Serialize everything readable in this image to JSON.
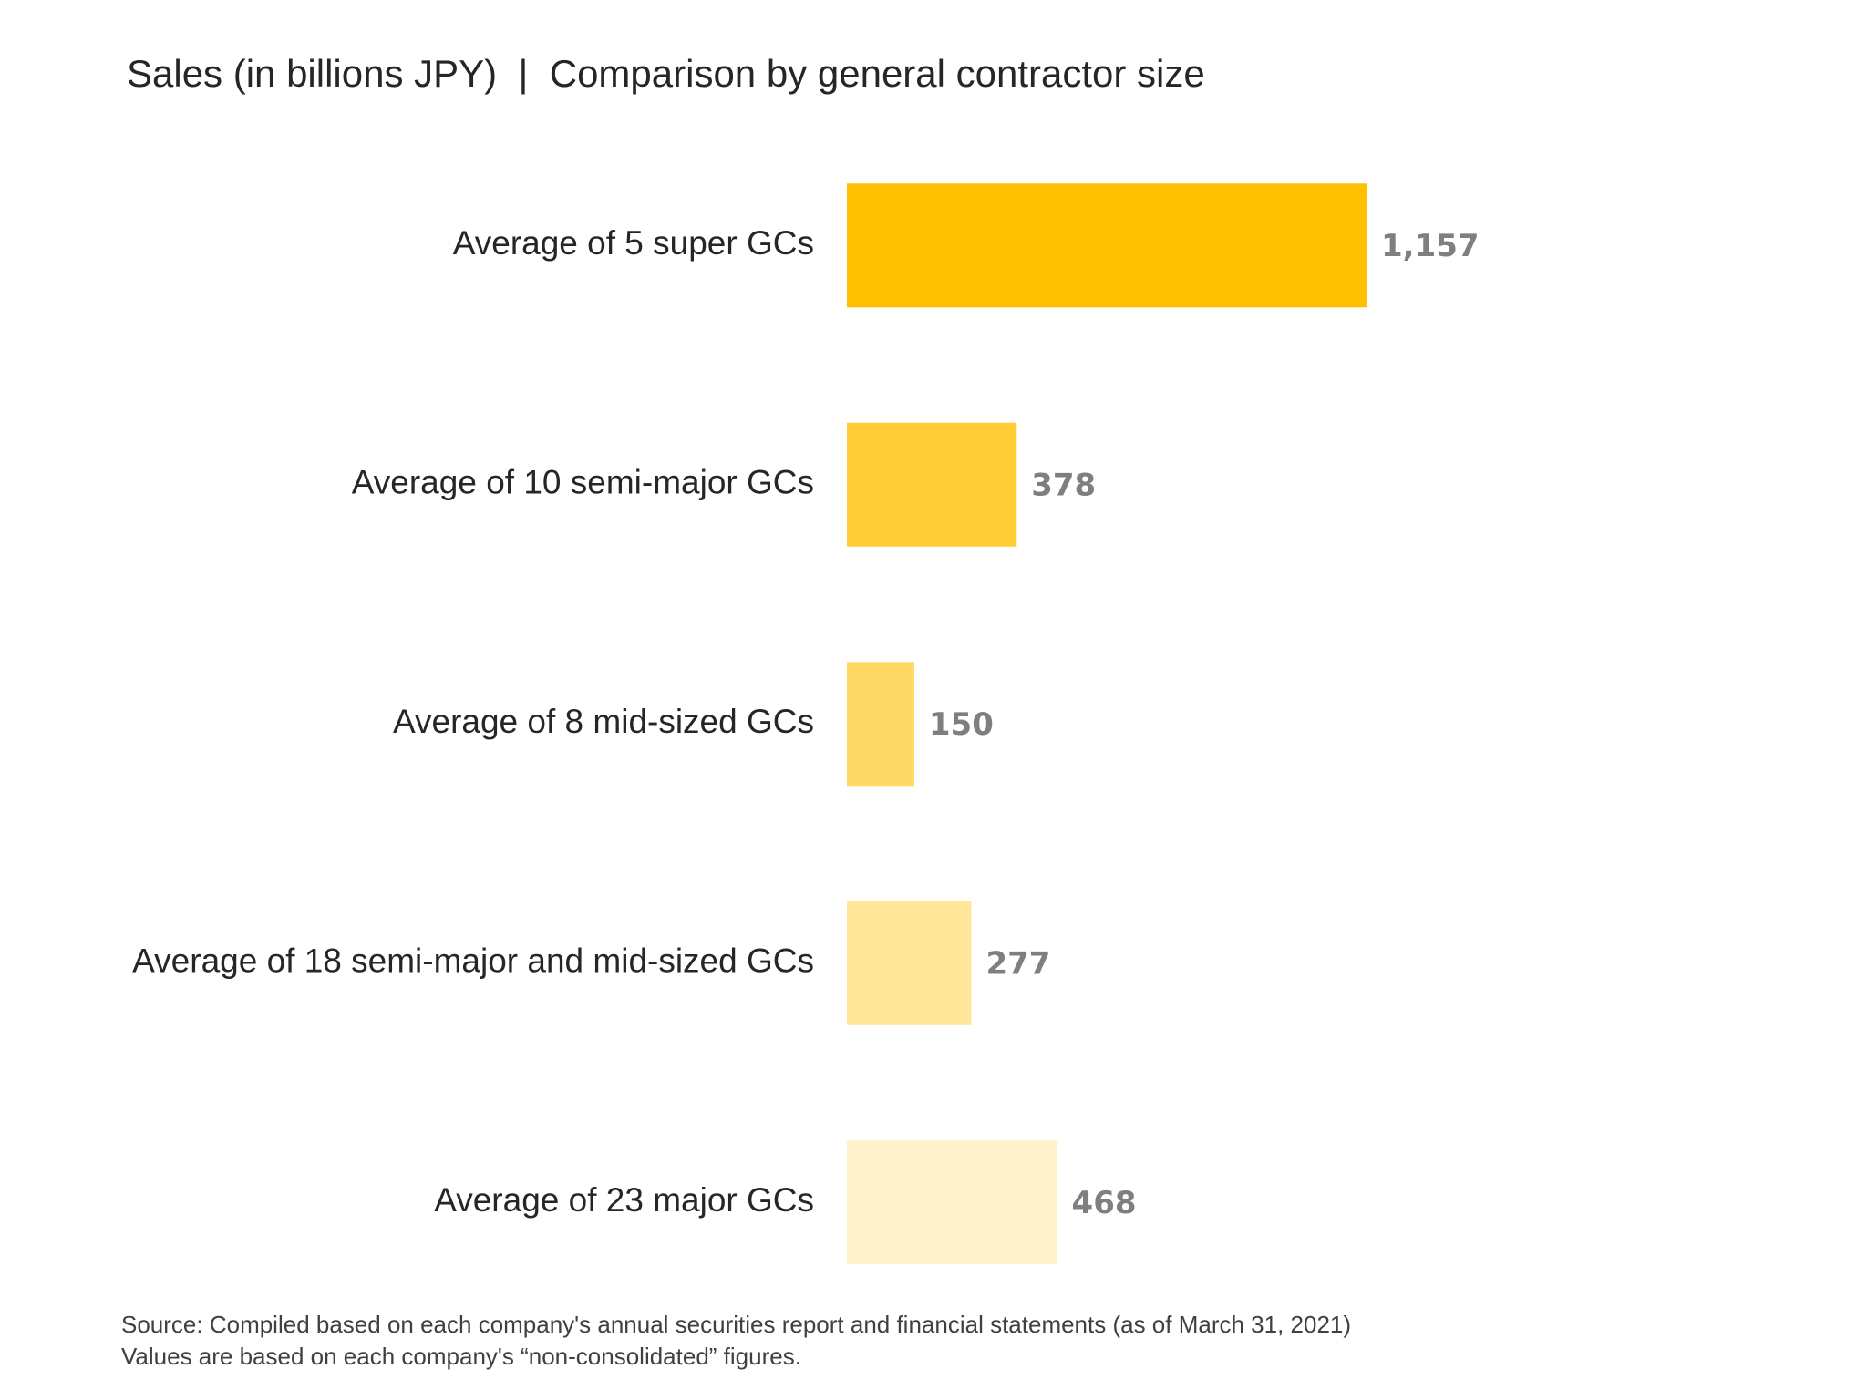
{
  "chart_data": {
    "type": "barh",
    "title": "Sales (in billions JPY)  |  Comparison by general contractor size",
    "categories": [
      "Average of 5 super GCs",
      "Average of 10 semi-major GCs",
      "Average of 8 mid-sized GCs",
      "Average of 18 semi-major and mid-sized GCs",
      "Average of 23 major GCs"
    ],
    "values": [
      1157,
      378,
      150,
      277,
      468
    ],
    "value_labels": [
      "1,157",
      "378",
      "150",
      "277",
      "468"
    ],
    "colors": [
      "#ffc000",
      "#ffcd36",
      "#ffd966",
      "#ffe699",
      "#fff2cc"
    ],
    "notes": [
      "Source: Compiled based on each company's annual securities report and financial statements (as of March 31, 2021)",
      "Values are based on each company's “non-consolidated” figures."
    ]
  }
}
